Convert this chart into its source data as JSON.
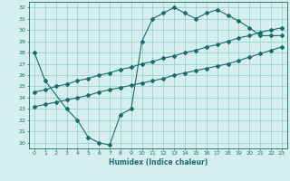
{
  "xlabel": "Humidex (Indice chaleur)",
  "bg_color": "#d5efef",
  "grid_color": "#9fcfcf",
  "line_color": "#1a6b6b",
  "xlim": [
    -0.5,
    23.5
  ],
  "ylim": [
    19.5,
    32.5
  ],
  "xticks": [
    0,
    1,
    2,
    3,
    4,
    5,
    6,
    7,
    8,
    9,
    10,
    11,
    12,
    13,
    14,
    15,
    16,
    17,
    18,
    19,
    20,
    21,
    22,
    23
  ],
  "yticks": [
    20,
    21,
    22,
    23,
    24,
    25,
    26,
    27,
    28,
    29,
    30,
    31,
    32
  ],
  "series1_x": [
    0,
    1,
    3,
    4,
    5,
    6,
    7,
    8,
    9,
    10,
    11,
    12,
    13,
    14,
    15,
    16,
    17,
    18,
    19,
    20,
    21,
    22,
    23
  ],
  "series1_y": [
    28.0,
    25.5,
    23.0,
    22.0,
    20.5,
    20.0,
    19.8,
    22.5,
    23.0,
    29.0,
    31.0,
    31.5,
    32.0,
    31.5,
    31.0,
    31.5,
    31.8,
    31.3,
    30.8,
    30.2,
    29.5,
    29.5,
    29.5
  ],
  "series2_x": [
    0,
    1,
    2,
    3,
    4,
    5,
    6,
    7,
    8,
    9,
    10,
    11,
    12,
    13,
    14,
    15,
    16,
    17,
    18,
    19,
    20,
    21,
    22,
    23
  ],
  "series2_y": [
    24.5,
    24.7,
    25.0,
    25.2,
    25.5,
    25.7,
    26.0,
    26.2,
    26.5,
    26.7,
    27.0,
    27.2,
    27.5,
    27.7,
    28.0,
    28.2,
    28.5,
    28.7,
    29.0,
    29.3,
    29.5,
    29.8,
    30.0,
    30.2
  ],
  "series3_x": [
    0,
    1,
    2,
    3,
    4,
    5,
    6,
    7,
    8,
    9,
    10,
    11,
    12,
    13,
    14,
    15,
    16,
    17,
    18,
    19,
    20,
    21,
    22,
    23
  ],
  "series3_y": [
    23.2,
    23.4,
    23.6,
    23.8,
    24.0,
    24.2,
    24.5,
    24.7,
    24.9,
    25.1,
    25.3,
    25.5,
    25.7,
    26.0,
    26.2,
    26.4,
    26.6,
    26.8,
    27.0,
    27.3,
    27.6,
    27.9,
    28.2,
    28.5
  ]
}
